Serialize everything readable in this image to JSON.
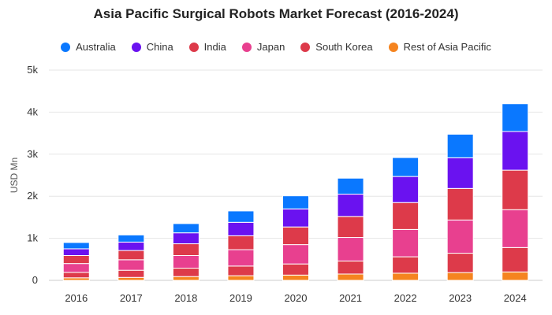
{
  "chart_data": {
    "type": "bar",
    "stacked": true,
    "title": "Asia Pacific Surgical Robots Market Forecast (2016-2024)",
    "xlabel": "",
    "ylabel": "USD Mn",
    "ylim": [
      0,
      5000
    ],
    "y_ticks": [
      0,
      1000,
      2000,
      3000,
      4000,
      5000
    ],
    "y_tick_labels": [
      "0",
      "1k",
      "2k",
      "3k",
      "4k",
      "5k"
    ],
    "grid": true,
    "legend_position": "top",
    "categories": [
      "2016",
      "2017",
      "2018",
      "2019",
      "2020",
      "2021",
      "2022",
      "2023",
      "2024"
    ],
    "series": [
      {
        "name": "Rest of Asia Pacific",
        "color": "#f5841f",
        "values": [
          60,
          70,
          90,
          110,
          125,
          150,
          170,
          185,
          200
        ]
      },
      {
        "name": "South Korea",
        "color": "#dd3a4a",
        "values": [
          130,
          170,
          200,
          230,
          265,
          310,
          390,
          460,
          580
        ]
      },
      {
        "name": "Japan",
        "color": "#e8408f",
        "values": [
          210,
          250,
          300,
          390,
          460,
          560,
          650,
          790,
          900
        ]
      },
      {
        "name": "India",
        "color": "#dd3a4a",
        "values": [
          190,
          220,
          280,
          330,
          420,
          500,
          640,
          750,
          940
        ]
      },
      {
        "name": "China",
        "color": "#6a12f0",
        "values": [
          160,
          200,
          260,
          320,
          430,
          530,
          620,
          730,
          920
        ]
      },
      {
        "name": "Australia",
        "color": "#0a78ff",
        "values": [
          150,
          170,
          220,
          270,
          310,
          380,
          450,
          560,
          660
        ]
      }
    ],
    "legend_order": [
      "Australia",
      "China",
      "India",
      "Japan",
      "South Korea",
      "Rest of Asia Pacific"
    ]
  }
}
